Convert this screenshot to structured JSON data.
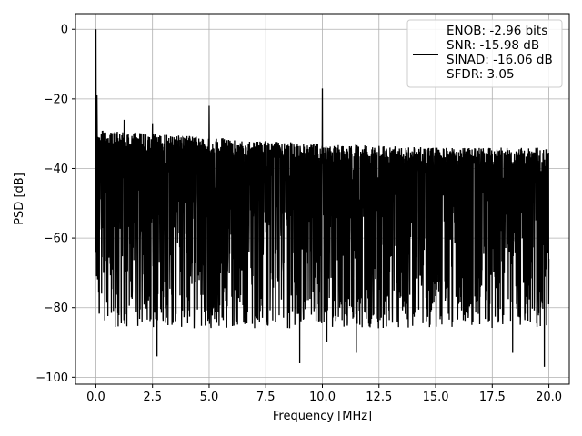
{
  "chart_data": {
    "type": "line",
    "title": "",
    "xlabel": "Frequency [MHz]",
    "ylabel": "PSD [dB]",
    "xlim": [
      -0.9,
      20.9
    ],
    "ylim": [
      -102,
      4.5
    ],
    "x_ticks": [
      0.0,
      2.5,
      5.0,
      7.5,
      10.0,
      12.5,
      15.0,
      17.5,
      20.0
    ],
    "x_tick_labels": [
      "0.0",
      "2.5",
      "5.0",
      "7.5",
      "10.0",
      "12.5",
      "15.0",
      "17.5",
      "20.0"
    ],
    "y_ticks": [
      0,
      -20,
      -40,
      -60,
      -80,
      -100
    ],
    "y_tick_labels": [
      "0",
      "−20",
      "−40",
      "−60",
      "−80",
      "−100"
    ],
    "grid": true,
    "legend_position": "top-right",
    "series": [
      {
        "legend_lines": [
          "ENOB: -2.96 bits",
          "SNR: -15.98 dB",
          "SINAD: -16.06 dB",
          "SFDR: 3.05"
        ],
        "color": "#000000",
        "x_range": [
          0.0,
          20.0
        ],
        "noise_floor_upper": [
          [
            0.0,
            -29
          ],
          [
            5.0,
            -31
          ],
          [
            10.0,
            -33
          ],
          [
            15.0,
            -34
          ],
          [
            20.0,
            -34
          ]
        ],
        "noise_floor_lower": -80,
        "deep_dips": [
          {
            "x": 2.7,
            "y": -94
          },
          {
            "x": 9.0,
            "y": -96
          },
          {
            "x": 10.2,
            "y": -90
          },
          {
            "x": 11.5,
            "y": -93
          },
          {
            "x": 18.4,
            "y": -93
          },
          {
            "x": 19.8,
            "y": -97
          }
        ],
        "spurs": [
          {
            "x": 0.0,
            "y": 0
          },
          {
            "x": 0.05,
            "y": -19
          },
          {
            "x": 1.25,
            "y": -26
          },
          {
            "x": 2.5,
            "y": -27
          },
          {
            "x": 5.0,
            "y": -22
          },
          {
            "x": 10.0,
            "y": -17
          }
        ]
      }
    ]
  }
}
